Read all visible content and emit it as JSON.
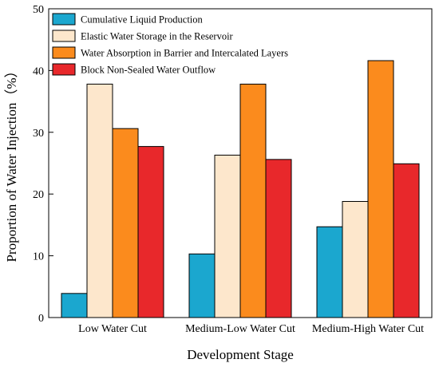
{
  "chart_data": {
    "type": "bar",
    "title": "",
    "xlabel": "Development Stage",
    "ylabel": "Proportion of Water Injection（%）",
    "ylim": [
      0,
      50
    ],
    "yticks": [
      0,
      10,
      20,
      30,
      40,
      50
    ],
    "grid": false,
    "legend_position": "top-left",
    "categories": [
      "Low Water Cut",
      "Medium-Low Water Cut",
      "Medium-High Water Cut"
    ],
    "series": [
      {
        "name": "Cumulative Liquid Production",
        "color": "#1ba7cf",
        "values": [
          3.9,
          10.3,
          14.7
        ]
      },
      {
        "name": "Elastic Water Storage in the Reservoir",
        "color": "#fde7cc",
        "values": [
          37.8,
          26.3,
          18.8
        ]
      },
      {
        "name": "Water Absorption in Barrier and Intercalated Layers",
        "color": "#fb8b1d",
        "values": [
          30.6,
          37.8,
          41.6
        ]
      },
      {
        "name": "Block Non-Sealed Water Outflow",
        "color": "#e8282b",
        "values": [
          27.7,
          25.6,
          24.9
        ]
      }
    ]
  }
}
